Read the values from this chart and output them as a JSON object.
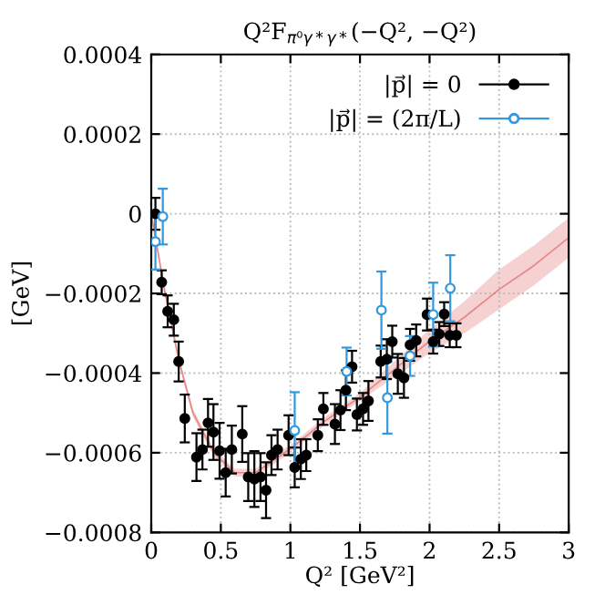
{
  "chart_data": {
    "type": "scatter",
    "title": "Q²F$_{π⁰γ*γ*}$(−Q², −Q²)",
    "xlabel": "Q² [GeV²]",
    "ylabel": "[GeV]",
    "xlim": [
      0,
      3
    ],
    "ylim": [
      -0.0008,
      0.0004
    ],
    "xticks": [
      0,
      0.5,
      1,
      1.5,
      2,
      2.5,
      3
    ],
    "yticks": [
      0.0004,
      0.0002,
      0,
      {
        "value": -0.0002,
        "label": "−0.0002"
      },
      {
        "value": -0.0004,
        "label": "−0.0004"
      },
      {
        "value": -0.0006,
        "label": "−0.0006"
      },
      {
        "value": -0.0008,
        "label": "−0.0008"
      }
    ],
    "grid": true,
    "legend": "top right",
    "series": [
      {
        "type": "line",
        "color": "#e06666",
        "marker": "none",
        "x": [
          0,
          0.1,
          0.2,
          0.3,
          0.45,
          0.6,
          0.75,
          1.0,
          1.25,
          1.5,
          1.75,
          2.0,
          2.25,
          2.5,
          2.75,
          3.0
        ],
        "values": [
          0,
          -0.0002,
          -0.00037,
          -0.0005,
          -0.0006,
          -0.00065,
          -0.00065,
          -0.00059,
          -0.00052,
          -0.00046,
          -0.00039,
          -0.00032,
          -0.00026,
          -0.00019,
          -0.00013,
          -6e-05
        ],
        "lower": [
          -1e-05,
          -0.00021,
          -0.00038,
          -0.00051,
          -0.00061,
          -0.00066,
          -0.00066,
          -0.0006,
          -0.00053,
          -0.00047,
          -0.00041,
          -0.00035,
          -0.0003,
          -0.00024,
          -0.00018,
          -0.00011
        ],
        "upper": [
          1e-05,
          -0.00019,
          -0.00036,
          -0.00049,
          -0.00059,
          -0.00064,
          -0.00064,
          -0.00058,
          -0.00051,
          -0.00045,
          -0.00037,
          -0.00029,
          -0.00022,
          -0.00014,
          -8e-05,
          -1e-05
        ]
      },
      {
        "name": "|p⃗| = 0",
        "color": "#000000",
        "marker": "circle",
        "x": [
          0.03,
          0.075,
          0.118,
          0.162,
          0.197,
          0.241,
          0.325,
          0.368,
          0.408,
          0.447,
          0.491,
          0.535,
          0.579,
          0.654,
          0.697,
          0.741,
          0.785,
          0.825,
          0.864,
          0.908,
          0.987,
          1.031,
          1.075,
          1.114,
          1.197,
          1.237,
          1.32,
          1.36,
          1.399,
          1.443,
          1.478,
          1.522,
          1.561,
          1.649,
          1.693,
          1.732,
          1.772,
          1.816,
          1.86,
          1.904,
          1.982,
          2.026,
          2.07,
          2.105,
          2.145,
          2.193
        ],
        "values": [
          0,
          -0.000172,
          -0.000245,
          -0.000266,
          -0.000371,
          -0.000514,
          -0.000611,
          -0.000592,
          -0.000525,
          -0.000548,
          -0.000595,
          -0.00065,
          -0.000592,
          -0.000553,
          -0.000661,
          -0.000666,
          -0.000661,
          -0.000694,
          -0.000606,
          -0.000592,
          -0.000556,
          -0.000637,
          -0.000616,
          -0.000606,
          -0.000556,
          -0.00049,
          -0.000528,
          -0.000493,
          -0.000443,
          -0.000384,
          -0.000504,
          -0.00049,
          -0.00047,
          -0.000371,
          -0.000365,
          -0.000321,
          -0.000402,
          -0.000412,
          -0.000329,
          -0.000318,
          -0.000253,
          -0.000321,
          -0.000302,
          -0.000252,
          -0.000305,
          -0.000305
        ],
        "errors": [
          4e-05,
          3e-05,
          4e-05,
          4e-05,
          5e-05,
          6e-05,
          6e-05,
          5e-05,
          6e-05,
          7e-05,
          7e-05,
          6e-05,
          6e-05,
          7e-05,
          6e-05,
          7e-05,
          6e-05,
          7e-05,
          5e-05,
          5e-05,
          5e-05,
          5e-05,
          5e-05,
          4e-05,
          4e-05,
          4e-05,
          5e-05,
          5e-05,
          5e-05,
          4e-05,
          4e-05,
          4e-05,
          5e-05,
          4e-05,
          5e-05,
          4e-05,
          5e-05,
          5e-05,
          4e-05,
          4e-05,
          4e-05,
          3e-05,
          3e-05,
          3e-05,
          3e-05,
          3e-05
        ]
      },
      {
        "name": "|p⃗| = (2π/L)",
        "color": "#3399dd",
        "marker": "open circle",
        "x": [
          0.03,
          0.083,
          1.031,
          1.404,
          1.654,
          1.697,
          1.86,
          2.026,
          2.149
        ],
        "values": [
          -7e-05,
          -7e-06,
          -0.000544,
          -0.000396,
          -0.000242,
          -0.000462,
          -0.000357,
          -0.000253,
          -0.000187
        ],
        "errors": [
          7e-05,
          7e-05,
          9.6e-05,
          6e-05,
          9.7e-05,
          9e-05,
          5e-05,
          8e-05,
          8.3e-05
        ]
      }
    ]
  }
}
